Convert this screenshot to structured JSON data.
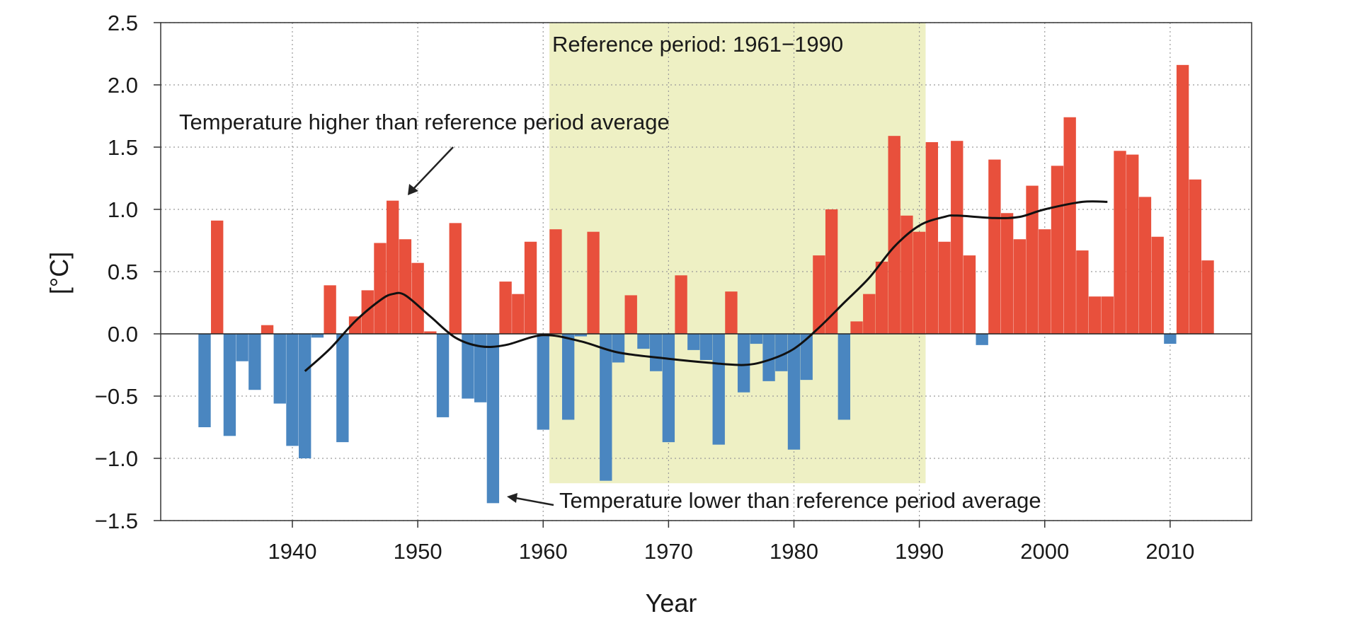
{
  "chart_data": {
    "type": "bar",
    "title": "",
    "xlabel": "Year",
    "ylabel": "[°C]",
    "xlim": [
      1929.5,
      2016.5
    ],
    "ylim": [
      -1.5,
      2.5
    ],
    "yticks": [
      -1.5,
      -1.0,
      -0.5,
      0.0,
      0.5,
      1.0,
      1.5,
      2.0,
      2.5
    ],
    "ytick_labels": [
      "−1.5",
      "−1.0",
      "−0.5",
      "0.0",
      "0.5",
      "1.0",
      "1.5",
      "2.0",
      "2.5"
    ],
    "xticks": [
      1940,
      1950,
      1960,
      1970,
      1980,
      1990,
      2000,
      2010
    ],
    "xtick_labels": [
      "1940",
      "1950",
      "1960",
      "1970",
      "1980",
      "1990",
      "2000",
      "2010"
    ],
    "grid": true,
    "reference_period": {
      "start": 1961,
      "end": 1990,
      "y_bottom": -1.2,
      "label": "Reference period: 1961−1990"
    },
    "colors": {
      "positive": "#e8503c",
      "negative": "#4a86c0",
      "reference": "#eef0c4",
      "smooth": "#111111",
      "grid": "#9a9a9a"
    },
    "series": [
      {
        "name": "Annual temperature anomaly",
        "years": [
          1933,
          1934,
          1935,
          1936,
          1937,
          1938,
          1939,
          1940,
          1941,
          1942,
          1943,
          1944,
          1945,
          1946,
          1947,
          1948,
          1949,
          1950,
          1951,
          1952,
          1953,
          1954,
          1955,
          1956,
          1957,
          1958,
          1959,
          1960,
          1961,
          1962,
          1963,
          1964,
          1965,
          1966,
          1967,
          1968,
          1969,
          1970,
          1971,
          1972,
          1973,
          1974,
          1975,
          1976,
          1977,
          1978,
          1979,
          1980,
          1981,
          1982,
          1983,
          1984,
          1985,
          1986,
          1987,
          1988,
          1989,
          1990,
          1991,
          1992,
          1993,
          1994,
          1995,
          1996,
          1997,
          1998,
          1999,
          2000,
          2001,
          2002,
          2003,
          2004,
          2005,
          2006,
          2007,
          2008,
          2009,
          2010,
          2011,
          2012,
          2013
        ],
        "values": [
          -0.75,
          0.91,
          -0.82,
          -0.22,
          -0.45,
          0.07,
          -0.56,
          -0.9,
          -1.0,
          -0.03,
          0.39,
          -0.87,
          0.14,
          0.35,
          0.73,
          1.07,
          0.76,
          0.57,
          0.02,
          -0.67,
          0.89,
          -0.52,
          -0.55,
          -1.36,
          0.42,
          0.32,
          0.74,
          -0.77,
          0.84,
          -0.69,
          -0.02,
          0.82,
          -1.18,
          -0.23,
          0.31,
          -0.12,
          -0.3,
          -0.87,
          0.47,
          -0.13,
          -0.21,
          -0.89,
          0.34,
          -0.47,
          -0.08,
          -0.38,
          -0.3,
          -0.93,
          -0.37,
          0.63,
          1.0,
          -0.69,
          0.1,
          0.32,
          0.58,
          1.59,
          0.95,
          0.82,
          1.54,
          0.74,
          1.55,
          0.63,
          -0.09,
          1.4,
          0.97,
          0.76,
          1.19,
          0.84,
          1.35,
          1.74,
          0.67,
          0.3,
          0.3,
          1.47,
          1.44,
          1.1,
          0.78,
          -0.08,
          2.16,
          1.24,
          0.59
        ]
      },
      {
        "name": "Smoothed trend",
        "years": [
          1941,
          1943,
          1945,
          1947,
          1948,
          1949,
          1951,
          1953,
          1955,
          1957,
          1960,
          1963,
          1966,
          1970,
          1973,
          1976,
          1978,
          1980,
          1982,
          1984,
          1986,
          1988,
          1990,
          1992,
          1993,
          1996,
          1998,
          2000,
          2003,
          2005
        ],
        "values": [
          -0.3,
          -0.12,
          0.1,
          0.27,
          0.32,
          0.31,
          0.14,
          -0.03,
          -0.1,
          -0.09,
          -0.01,
          -0.06,
          -0.15,
          -0.2,
          -0.23,
          -0.25,
          -0.21,
          -0.12,
          0.05,
          0.25,
          0.45,
          0.7,
          0.87,
          0.94,
          0.95,
          0.93,
          0.94,
          1.0,
          1.06,
          1.06
        ]
      }
    ],
    "annotations": {
      "higher": "Temperature higher than reference period average",
      "lower": "Temperature lower than reference period average"
    }
  }
}
